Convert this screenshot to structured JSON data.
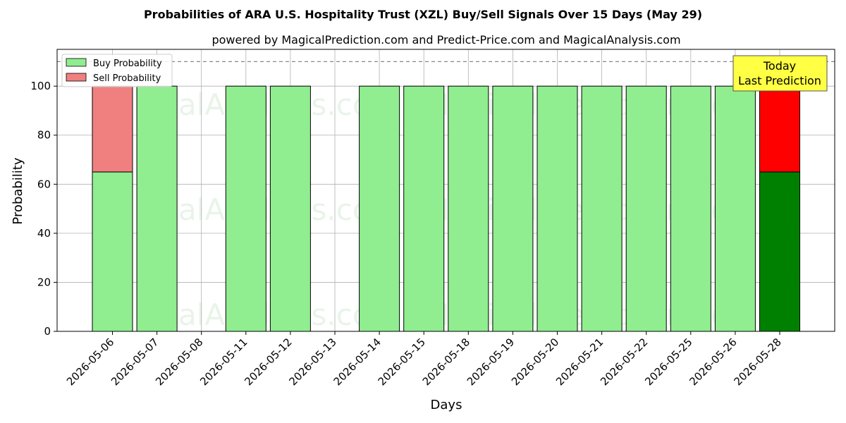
{
  "chart_data": {
    "type": "bar",
    "stacked": true,
    "title": "Probabilities of ARA U.S. Hospitality Trust (XZL) Buy/Sell Signals Over 15 Days (May 29)",
    "subtitle": "powered by MagicalPrediction.com and Predict-Price.com and MagicalAnalysis.com",
    "xlabel": "Days",
    "ylabel": "Probability",
    "ylim": [
      0,
      115
    ],
    "yticks": [
      0,
      20,
      40,
      60,
      80,
      100
    ],
    "reference_line": 110,
    "grid": true,
    "legend_position": "top-left",
    "categories": [
      "2026-05-06",
      "2026-05-07",
      "2026-05-08",
      "2026-05-11",
      "2026-05-12",
      "2026-05-13",
      "2026-05-14",
      "2026-05-15",
      "2026-05-18",
      "2026-05-19",
      "2026-05-20",
      "2026-05-21",
      "2026-05-22",
      "2026-05-25",
      "2026-05-26",
      "2026-05-28"
    ],
    "series": [
      {
        "name": "Buy Probability",
        "color": "#90ee90",
        "values": [
          65,
          100,
          0,
          100,
          100,
          0,
          100,
          100,
          100,
          100,
          100,
          100,
          100,
          100,
          100,
          65
        ]
      },
      {
        "name": "Sell Probability",
        "color": "#f08080",
        "values": [
          35,
          0,
          0,
          0,
          0,
          0,
          0,
          0,
          0,
          0,
          0,
          0,
          0,
          0,
          0,
          35
        ]
      }
    ],
    "highlight": {
      "index": 15,
      "buy_color": "#008000",
      "sell_color": "#ff0000"
    },
    "annotation": {
      "lines": [
        "Today",
        "Last Prediction"
      ],
      "background": "#ffff44"
    },
    "watermarks": [
      "MagicalAnalysis.com",
      "MagicalPrediction.com"
    ]
  }
}
